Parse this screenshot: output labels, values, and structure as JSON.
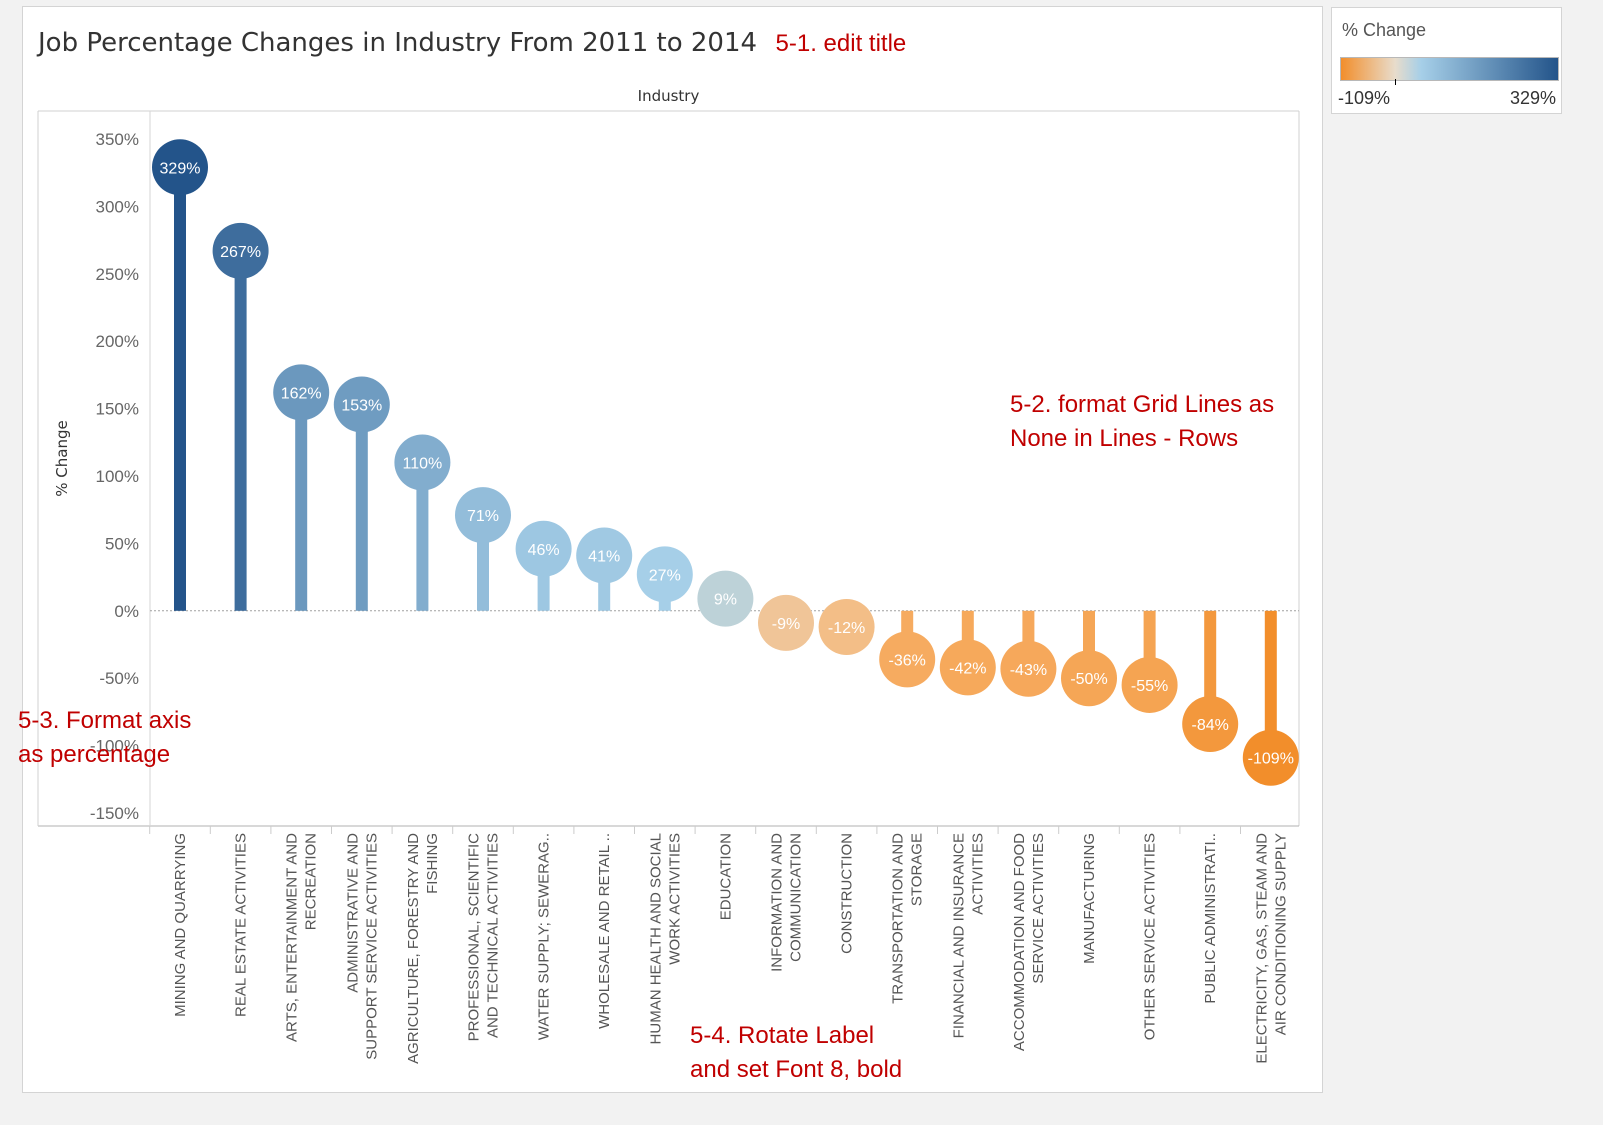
{
  "title": "Job Percentage Changes in Industry From 2011 to 2014",
  "annotations": {
    "edit_title": "5-1. edit title",
    "grid_lines": [
      "5-2. format Grid Lines as",
      "None in Lines - Rows"
    ],
    "format_axis": [
      "5-3. Format axis",
      "as percentage"
    ],
    "rotate_label": [
      "5-4. Rotate Label",
      "and set Font 8, bold"
    ]
  },
  "legend": {
    "title": "% Change",
    "min_label": "-109%",
    "max_label": "329%",
    "colors": {
      "negative": "#f28e2b",
      "mid": "#e8dccb",
      "positive_light": "#a6cfe8",
      "positive_dark": "#23548a"
    }
  },
  "chart_data": {
    "type": "lollipop",
    "xlabel": "Industry",
    "ylabel": "% Change",
    "ylim": [
      -150,
      350
    ],
    "yticks": [
      350,
      300,
      250,
      200,
      150,
      100,
      50,
      0,
      -50,
      -100,
      -150
    ],
    "ytick_labels": [
      "350%",
      "300%",
      "250%",
      "200%",
      "150%",
      "100%",
      "50%",
      "0%",
      "-50%",
      "-100%",
      "-150%"
    ],
    "grid": false,
    "legend": "top-right",
    "categories": [
      [
        "MINING AND QUARRYING"
      ],
      [
        "REAL ESTATE ACTIVITIES"
      ],
      [
        "ARTS, ENTERTAINMENT AND",
        "RECREATION"
      ],
      [
        "ADMINISTRATIVE AND",
        "SUPPORT SERVICE ACTIVITIES"
      ],
      [
        "AGRICULTURE, FORESTRY AND",
        "FISHING"
      ],
      [
        "PROFESSIONAL, SCIENTIFIC",
        "AND TECHNICAL ACTIVITIES"
      ],
      [
        "WATER SUPPLY; SEWERAG.."
      ],
      [
        "WHOLESALE AND RETAIL .."
      ],
      [
        "HUMAN HEALTH AND SOCIAL",
        "WORK ACTIVITIES"
      ],
      [
        "EDUCATION"
      ],
      [
        "INFORMATION AND",
        "COMMUNICATION"
      ],
      [
        "CONSTRUCTION"
      ],
      [
        "TRANSPORTATION AND",
        "STORAGE"
      ],
      [
        "FINANCIAL AND INSURANCE",
        "ACTIVITIES"
      ],
      [
        "ACCOMMODATION AND FOOD",
        "SERVICE ACTIVITIES"
      ],
      [
        "MANUFACTURING"
      ],
      [
        "OTHER SERVICE ACTIVITIES"
      ],
      [
        "PUBLIC ADMINISTRATI.."
      ],
      [
        "ELECTRICITY, GAS, STEAM AND",
        "AIR CONDITIONING SUPPLY"
      ]
    ],
    "values": [
      329,
      267,
      162,
      153,
      110,
      71,
      46,
      41,
      27,
      9,
      -9,
      -12,
      -36,
      -42,
      -43,
      -50,
      -55,
      -84,
      -109
    ],
    "value_labels": [
      "329%",
      "267%",
      "162%",
      "153%",
      "110%",
      "71%",
      "46%",
      "41%",
      "27%",
      "9%",
      "-9%",
      "-12%",
      "-36%",
      "-42%",
      "-43%",
      "-50%",
      "-55%",
      "-84%",
      "-109%"
    ]
  }
}
